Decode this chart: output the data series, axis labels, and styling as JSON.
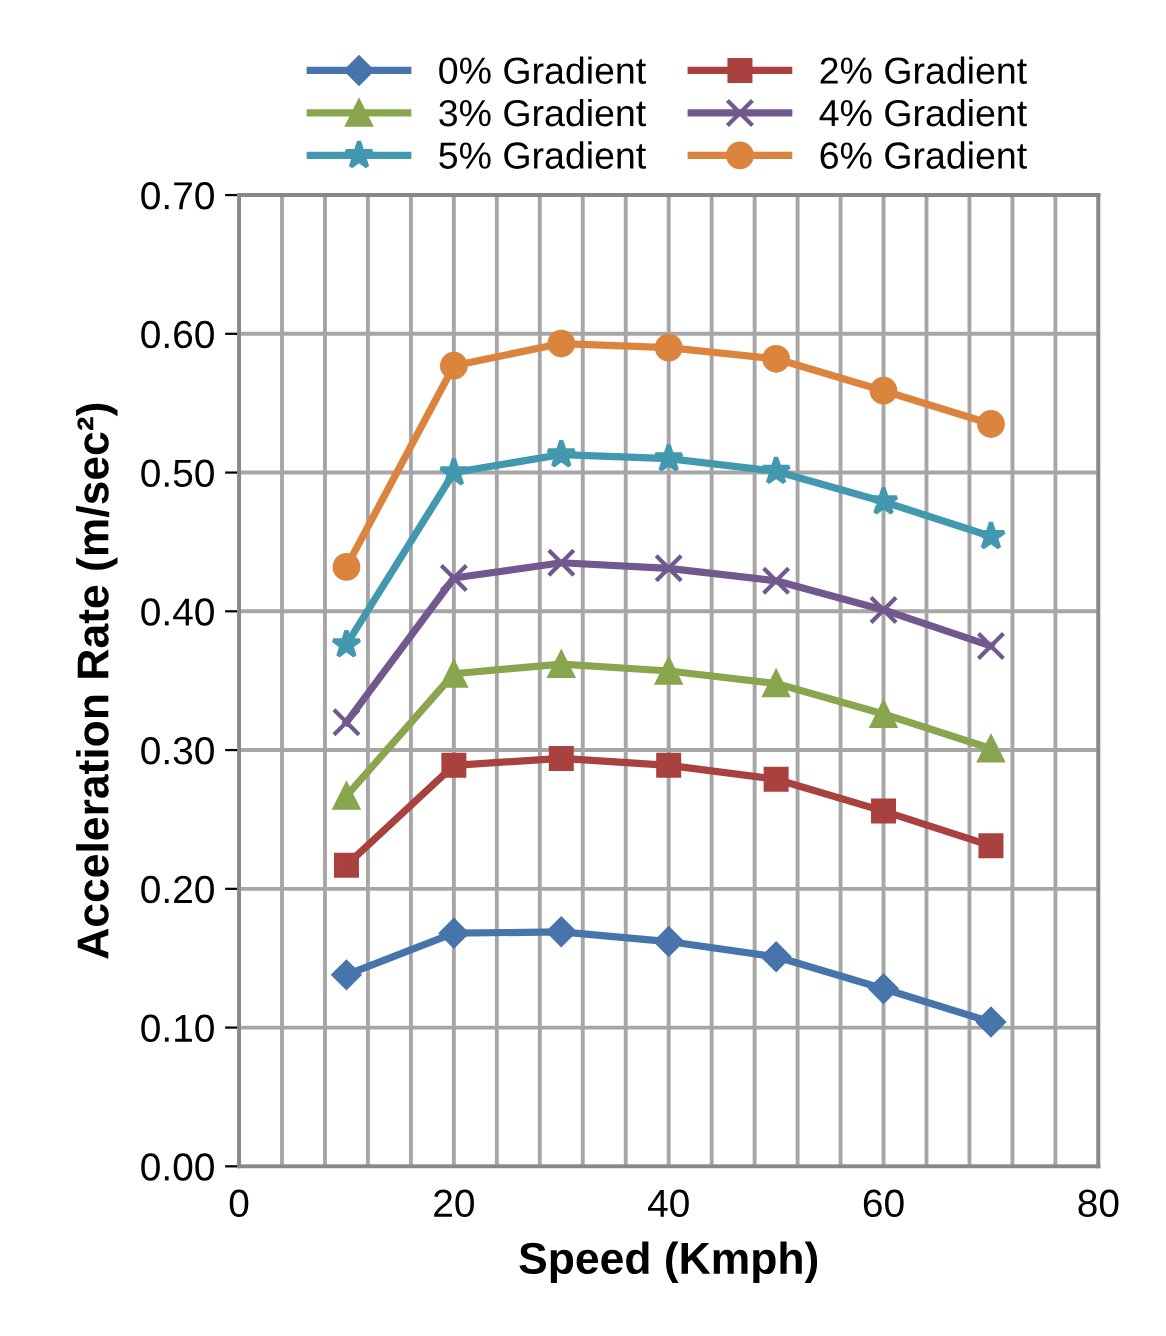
{
  "chart_data": {
    "type": "line",
    "xlabel": "Speed (Kmph)",
    "ylabel": "Acceleration Rate (m/sec²)",
    "x": [
      10,
      20,
      30,
      40,
      50,
      60,
      70
    ],
    "series": [
      {
        "name": "0% Gradient",
        "color": "#4674ab",
        "marker": "diamond",
        "values": [
          0.138,
          0.168,
          0.169,
          0.162,
          0.151,
          0.128,
          0.104
        ]
      },
      {
        "name": "2% Gradient",
        "color": "#a9413e",
        "marker": "square",
        "values": [
          0.217,
          0.289,
          0.294,
          0.289,
          0.279,
          0.256,
          0.231
        ]
      },
      {
        "name": "3% Gradient",
        "color": "#89a54e",
        "marker": "triangle",
        "values": [
          0.267,
          0.355,
          0.362,
          0.357,
          0.348,
          0.326,
          0.301
        ]
      },
      {
        "name": "4% Gradient",
        "color": "#71588f",
        "marker": "cross",
        "values": [
          0.32,
          0.424,
          0.435,
          0.431,
          0.422,
          0.401,
          0.375
        ]
      },
      {
        "name": "5% Gradient",
        "color": "#4198af",
        "marker": "star",
        "values": [
          0.376,
          0.5,
          0.513,
          0.51,
          0.501,
          0.479,
          0.454
        ]
      },
      {
        "name": "6% Gradient",
        "color": "#db843d",
        "marker": "circle",
        "values": [
          0.432,
          0.577,
          0.593,
          0.59,
          0.582,
          0.559,
          0.535
        ]
      }
    ],
    "xlim": [
      0,
      80
    ],
    "xticks": [
      0,
      {
        "value": 4,
        "label": null
      },
      {
        "value": 8,
        "label": null
      },
      {
        "value": 12,
        "label": null
      },
      {
        "value": 16,
        "label": null
      },
      20,
      {
        "value": 24,
        "label": null
      },
      {
        "value": 28,
        "label": null
      },
      {
        "value": 32,
        "label": null
      },
      {
        "value": 36,
        "label": null
      },
      40,
      {
        "value": 44,
        "label": null
      },
      {
        "value": 48,
        "label": null
      },
      {
        "value": 52,
        "label": null
      },
      {
        "value": 56,
        "label": null
      },
      60,
      {
        "value": 64,
        "label": null
      },
      {
        "value": 68,
        "label": null
      },
      {
        "value": 72,
        "label": null
      },
      {
        "value": 76,
        "label": null
      },
      80
    ],
    "ylim": [
      0,
      0.7
    ],
    "yticks": [
      {
        "value": 0,
        "label": "0.00"
      },
      {
        "value": 0.1,
        "label": "0.10"
      },
      {
        "value": 0.2,
        "label": "0.20"
      },
      {
        "value": 0.3,
        "label": "0.30"
      },
      {
        "value": 0.4,
        "label": "0.40"
      },
      {
        "value": 0.5,
        "label": "0.50"
      },
      {
        "value": 0.6,
        "label": "0.60"
      },
      {
        "value": 0.7,
        "label": "0.70"
      }
    ],
    "grid": true,
    "legend": "top",
    "line_style": "solid"
  }
}
